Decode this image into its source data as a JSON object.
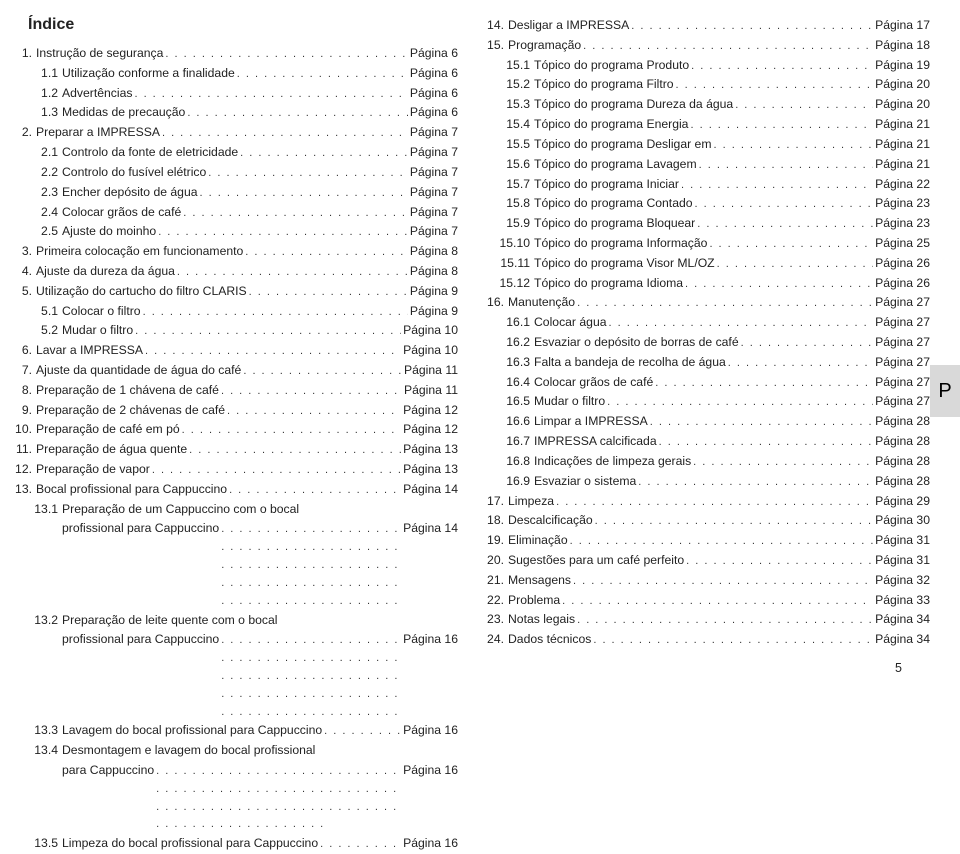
{
  "title": "Índice",
  "sideTab": "P",
  "footerPage": "5",
  "pagePrefix": "Página",
  "left": [
    {
      "n": "1.",
      "t": "Instrução de segurança",
      "p": "6"
    },
    {
      "n": "1.1",
      "t": "Utilização conforme a finalidade",
      "p": "6",
      "sub": true
    },
    {
      "n": "1.2",
      "t": "Advertências",
      "p": "6",
      "sub": true
    },
    {
      "n": "1.3",
      "t": "Medidas de precaução",
      "p": "6",
      "sub": true
    },
    {
      "n": "2.",
      "t": "Preparar a IMPRESSA",
      "p": "7"
    },
    {
      "n": "2.1",
      "t": "Controlo da fonte de eletricidade",
      "p": "7",
      "sub": true
    },
    {
      "n": "2.2",
      "t": "Controlo do fusível elétrico",
      "p": "7",
      "sub": true
    },
    {
      "n": "2.3",
      "t": "Encher depósito de água",
      "p": "7",
      "sub": true
    },
    {
      "n": "2.4",
      "t": "Colocar grãos de café",
      "p": "7",
      "sub": true
    },
    {
      "n": "2.5",
      "t": "Ajuste do moinho",
      "p": "7",
      "sub": true
    },
    {
      "n": "3.",
      "t": "Primeira colocação em funcionamento",
      "p": "8"
    },
    {
      "n": "4.",
      "t": "Ajuste da dureza da água",
      "p": "8"
    },
    {
      "n": "5.",
      "t": "Utilização do cartucho do filtro CLARIS",
      "p": "9"
    },
    {
      "n": "5.1",
      "t": "Colocar o filtro",
      "p": "9",
      "sub": true
    },
    {
      "n": "5.2",
      "t": "Mudar o filtro",
      "p": "10",
      "sub": true
    },
    {
      "n": "6.",
      "t": "Lavar a IMPRESSA",
      "p": "10"
    },
    {
      "n": "7.",
      "t": "Ajuste da quantidade de água do café",
      "p": "11"
    },
    {
      "n": "8.",
      "t": "Preparação de 1 chávena de café",
      "p": "11"
    },
    {
      "n": "9.",
      "t": "Preparação de 2 chávenas de café",
      "p": "12"
    },
    {
      "n": "10.",
      "t": "Preparação de café em pó",
      "p": "12"
    },
    {
      "n": "11.",
      "t": "Preparação de água quente",
      "p": "13"
    },
    {
      "n": "12.",
      "t": "Preparação de vapor",
      "p": "13"
    },
    {
      "n": "13.",
      "t": "Bocal profissional para Cappuccino",
      "p": "14"
    },
    {
      "n": "13.1",
      "t1": "Preparação de um Cappuccino com o bocal",
      "t2": "profissional para Cappuccino",
      "p": "14",
      "sub": true,
      "wrap": true
    },
    {
      "n": "13.2",
      "t1": "Preparação de leite quente com o bocal",
      "t2": "profissional para Cappuccino",
      "p": "16",
      "sub": true,
      "wrap": true
    },
    {
      "n": "13.3",
      "t": "Lavagem do bocal profissional para Cappuccino",
      "p": "16",
      "sub": true
    },
    {
      "n": "13.4",
      "t1": "Desmontagem e lavagem do bocal profissional",
      "t2": "para Cappuccino",
      "p": "16",
      "sub": true,
      "wrap": true
    },
    {
      "n": "13.5",
      "t": "Limpeza do bocal profissional para Cappuccino",
      "p": "16",
      "sub": true
    }
  ],
  "right": [
    {
      "n": "14.",
      "t": "Desligar a IMPRESSA",
      "p": "17"
    },
    {
      "n": "15.",
      "t": "Programação",
      "p": "18"
    },
    {
      "n": "15.1",
      "t": "Tópico do programa Produto",
      "p": "19",
      "sub": true
    },
    {
      "n": "15.2",
      "t": "Tópico do programa Filtro",
      "p": "20",
      "sub": true
    },
    {
      "n": "15.3",
      "t": "Tópico do programa Dureza da água",
      "p": "20",
      "sub": true
    },
    {
      "n": "15.4",
      "t": "Tópico do programa Energia",
      "p": "21",
      "sub": true
    },
    {
      "n": "15.5",
      "t": "Tópico do programa Desligar em",
      "p": "21",
      "sub": true
    },
    {
      "n": "15.6",
      "t": "Tópico do programa Lavagem",
      "p": "21",
      "sub": true
    },
    {
      "n": "15.7",
      "t": "Tópico do programa Iniciar",
      "p": "22",
      "sub": true
    },
    {
      "n": "15.8",
      "t": "Tópico do programa Contado",
      "p": "23",
      "sub": true
    },
    {
      "n": "15.9",
      "t": "Tópico do programa Bloquear",
      "p": "23",
      "sub": true
    },
    {
      "n": "15.10",
      "t": "Tópico do programa Informação",
      "p": "25",
      "sub": true
    },
    {
      "n": "15.11",
      "t": "Tópico do programa Visor ML/OZ",
      "p": "26",
      "sub": true
    },
    {
      "n": "15.12",
      "t": "Tópico do programa Idioma",
      "p": "26",
      "sub": true
    },
    {
      "n": "16.",
      "t": "Manutenção",
      "p": "27"
    },
    {
      "n": "16.1",
      "t": "Colocar água",
      "p": "27",
      "sub": true
    },
    {
      "n": "16.2",
      "t": "Esvaziar o depósito de borras de café",
      "p": "27",
      "sub": true
    },
    {
      "n": "16.3",
      "t": "Falta a bandeja de recolha de água",
      "p": "27",
      "sub": true
    },
    {
      "n": "16.4",
      "t": "Colocar grãos de café",
      "p": "27",
      "sub": true
    },
    {
      "n": "16.5",
      "t": "Mudar o filtro",
      "p": "27",
      "sub": true
    },
    {
      "n": "16.6",
      "t": "Limpar a IMPRESSA",
      "p": "28",
      "sub": true
    },
    {
      "n": "16.7",
      "t": "IMPRESSA calcificada",
      "p": "28",
      "sub": true
    },
    {
      "n": "16.8",
      "t": "Indicações de limpeza gerais",
      "p": "28",
      "sub": true
    },
    {
      "n": "16.9",
      "t": "Esvaziar o sistema",
      "p": "28",
      "sub": true
    },
    {
      "n": "17.",
      "t": "Limpeza",
      "p": "29"
    },
    {
      "n": "18.",
      "t": "Descalcificação",
      "p": "30"
    },
    {
      "n": "19.",
      "t": "Eliminação",
      "p": "31"
    },
    {
      "n": "20.",
      "t": "Sugestões para um café perfeito",
      "p": "31"
    },
    {
      "n": "21.",
      "t": "Mensagens",
      "p": "32"
    },
    {
      "n": "22.",
      "t": "Problema",
      "p": "33"
    },
    {
      "n": "23.",
      "t": "Notas legais",
      "p": "34"
    },
    {
      "n": "24.",
      "t": "Dados técnicos",
      "p": "34"
    }
  ]
}
